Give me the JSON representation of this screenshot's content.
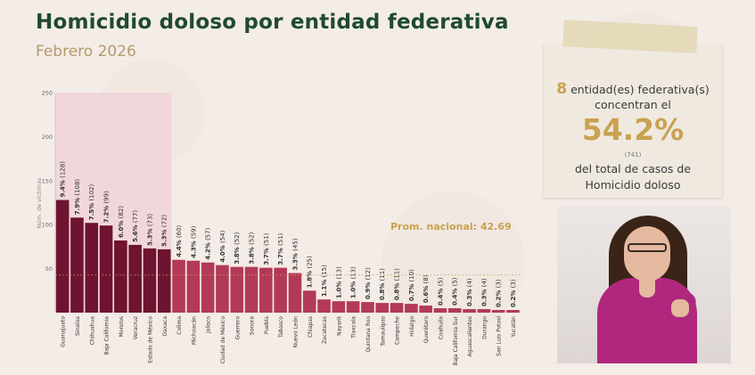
{
  "title": "Homicidio doloso por entidad federativa",
  "subtitle": "Febrero 2026",
  "colors": {
    "dark_bar": "#6e1430",
    "light_bar": "#b23a57",
    "highlight_band": "#f0d0d8",
    "title": "#1f4a30",
    "subtitle": "#b59a6a",
    "accent": "#c9a24f"
  },
  "chart_data": {
    "type": "bar",
    "ylabel": "Núm. de víctimas",
    "ylim": [
      0,
      250
    ],
    "yticks": [
      50,
      100,
      150,
      200,
      250
    ],
    "categories": [
      "Guanajuato",
      "Sinaloa",
      "Chihuahua",
      "Baja California",
      "Morelos",
      "Veracruz",
      "Estado de México",
      "Oaxaca",
      "Colima",
      "Michoacán",
      "Jalisco",
      "Ciudad de México",
      "Guerrero",
      "Sonora",
      "Puebla",
      "Tabasco",
      "Nuevo León",
      "Chiapas",
      "Zacatecas",
      "Nayarit",
      "Tlaxcala",
      "Quintana Roo",
      "Tamaulipas",
      "Campeche",
      "Hidalgo",
      "Querétaro",
      "Coahuila",
      "Baja California Sur",
      "Aguascalientes",
      "Durango",
      "San Luis Potosí",
      "Yucatán"
    ],
    "values": [
      128,
      108,
      102,
      99,
      82,
      77,
      73,
      72,
      60,
      59,
      57,
      54,
      52,
      52,
      51,
      51,
      45,
      25,
      15,
      13,
      13,
      12,
      11,
      11,
      10,
      8,
      5,
      5,
      4,
      4,
      3,
      3
    ],
    "labels": [
      "9.4% (128)",
      "7.9% (108)",
      "7.5% (102)",
      "7.2% (99)",
      "6.0% (82)",
      "5.6% (77)",
      "5.3% (73)",
      "5.3% (72)",
      "4.4% (60)",
      "4.3% (59)",
      "4.2% (57)",
      "4.0% (54)",
      "3.8% (52)",
      "3.8% (52)",
      "3.7% (51)",
      "3.7% (51)",
      "3.3% (45)",
      "1.8% (25)",
      "1.1% (15)",
      "1.0% (13)",
      "1.0% (13)",
      "0.9% (12)",
      "0.8% (11)",
      "0.8% (11)",
      "0.7% (10)",
      "0.6% (8)",
      "0.4% (5)",
      "0.4% (5)",
      "0.3% (4)",
      "0.3% (4)",
      "0.2% (3)",
      "0.2% (3)"
    ],
    "highlight_count": 8,
    "average": 42.69,
    "average_label": "Prom. nacional: 42.69"
  },
  "card": {
    "line1_number": "8",
    "line1_text": " entidad(es) federativa(s)",
    "line2": "concentran el",
    "percent": "54.2%",
    "small": "(741)",
    "line3": "del total de casos de",
    "line4": "Homicidio doloso"
  }
}
